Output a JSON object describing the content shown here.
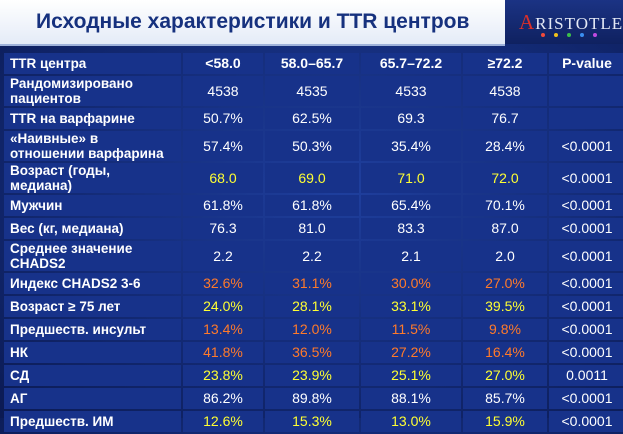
{
  "title": "Исходные характеристики и TTR центров",
  "logo": {
    "text_first": "A",
    "text_rest": "RISTOTLE"
  },
  "colors": {
    "yellow": "#ffff33",
    "orange": "#ff7a2a",
    "white": "#ffffff",
    "dots": [
      "#f04a3a",
      "#f2c21b",
      "#3cc04a",
      "#3a8ef0",
      "#c04ae0"
    ]
  },
  "header": {
    "label": "TTR центра",
    "cols": [
      "<58.0",
      "58.0–65.7",
      "65.7–72.2",
      "≥72.2",
      "P-value"
    ]
  },
  "rows": [
    {
      "label": "Рандомизировано пациентов",
      "values": [
        "4538",
        "4535",
        "4533",
        "4538",
        ""
      ],
      "color": "white",
      "size": "r2"
    },
    {
      "label": "TTR на варфарине",
      "values": [
        "50.7%",
        "62.5%",
        "69.3",
        "76.7",
        ""
      ],
      "color": "white",
      "size": "r1"
    },
    {
      "label": "«Наивные» в отношении варфарина",
      "values": [
        "57.4%",
        "50.3%",
        "35.4%",
        "28.4%",
        "<0.0001"
      ],
      "color": "white",
      "size": "r2"
    },
    {
      "label": "Возраст (годы, медиана)",
      "values": [
        "68.0",
        "69.0",
        "71.0",
        "72.0",
        "<0.0001"
      ],
      "color": "yellow",
      "size": "r1"
    },
    {
      "label": "Мужчин",
      "values": [
        "61.8%",
        "61.8%",
        "65.4%",
        "70.1%",
        "<0.0001"
      ],
      "color": "white",
      "size": "r1"
    },
    {
      "label": "Вес (кг, медиана)",
      "values": [
        "76.3",
        "81.0",
        "83.3",
        "87.0",
        "<0.0001"
      ],
      "color": "white",
      "size": "r1"
    },
    {
      "label": "Среднее значение CHADS2",
      "values": [
        "2.2",
        "2.2",
        "2.1",
        "2.0",
        "<0.0001"
      ],
      "color": "white",
      "size": "r2"
    },
    {
      "label": "Индекс CHADS2 3-6",
      "values": [
        "32.6%",
        "31.1%",
        "30.0%",
        "27.0%",
        "<0.0001"
      ],
      "color": "orange",
      "size": "r1"
    },
    {
      "label": "Возраст ≥ 75 лет",
      "values": [
        "24.0%",
        "28.1%",
        "33.1%",
        "39.5%",
        "<0.0001"
      ],
      "color": "yellow",
      "size": "r1"
    },
    {
      "label": "Предшеств. инсульт",
      "values": [
        "13.4%",
        "12.0%",
        "11.5%",
        "9.8%",
        "<0.0001"
      ],
      "color": "orange",
      "size": "r1"
    },
    {
      "label": "НК",
      "values": [
        "41.8%",
        "36.5%",
        "27.2%",
        "16.4%",
        "<0.0001"
      ],
      "color": "orange",
      "size": "r1"
    },
    {
      "label": "СД",
      "values": [
        "23.8%",
        "23.9%",
        "25.1%",
        "27.0%",
        "0.0011"
      ],
      "color": "yellow",
      "size": "r1"
    },
    {
      "label": "АГ",
      "values": [
        "86.2%",
        "89.8%",
        "88.1%",
        "85.7%",
        "<0.0001"
      ],
      "color": "white",
      "size": "r1"
    },
    {
      "label": "Предшеств. ИМ",
      "values": [
        "12.6%",
        "15.3%",
        "13.0%",
        "15.9%",
        "<0.0001"
      ],
      "color": "yellow",
      "size": "r1"
    }
  ]
}
